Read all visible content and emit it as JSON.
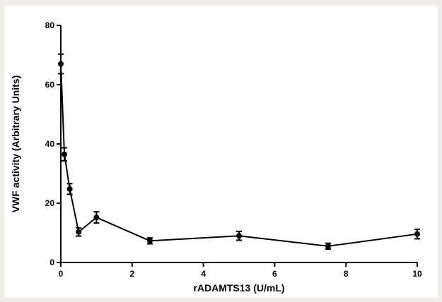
{
  "chart_data": {
    "type": "line",
    "title": "",
    "xlabel": "rADAMTS13 (U/mL)",
    "ylabel": "VWF activity (Arbitrary Units)",
    "xlim": [
      0,
      10
    ],
    "ylim": [
      0,
      80
    ],
    "x_ticks": [
      0,
      2,
      4,
      6,
      8,
      10
    ],
    "y_ticks": [
      0,
      20,
      40,
      60,
      80
    ],
    "grid": false,
    "legend": "none",
    "line_color": "#000000",
    "series": [
      {
        "x": [
          0,
          0.1,
          0.25,
          0.5,
          1,
          2.5,
          5,
          7.5,
          10
        ],
        "y": [
          67,
          36.5,
          24.8,
          10.3,
          15.2,
          7.3,
          9.0,
          5.5,
          9.6
        ],
        "err": [
          3.3,
          2.2,
          1.8,
          1.4,
          1.9,
          1.0,
          1.5,
          1.0,
          1.6
        ]
      }
    ]
  }
}
